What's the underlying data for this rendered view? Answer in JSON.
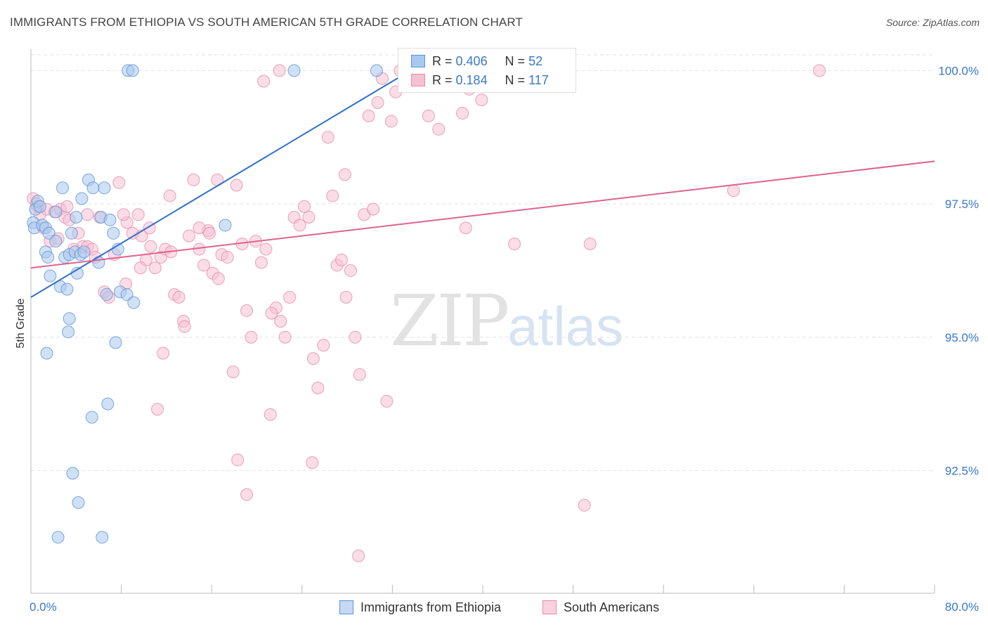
{
  "title": "IMMIGRANTS FROM ETHIOPIA VS SOUTH AMERICAN 5TH GRADE CORRELATION CHART",
  "source": "Source: ZipAtlas.com",
  "watermark": {
    "zip": "ZIP",
    "atlas": "atlas"
  },
  "legend": {
    "rows": [
      {
        "r_label": "R =",
        "r_value": "0.406",
        "n_label": "N =",
        "n_value": "52"
      },
      {
        "r_label": "R =",
        "r_value": "0.184",
        "n_label": "N =",
        "n_value": "117"
      }
    ]
  },
  "bottom_legend": [
    "Immigrants from Ethiopia",
    "South Americans"
  ],
  "chart_data": {
    "type": "scatter",
    "title": "IMMIGRANTS FROM ETHIOPIA VS SOUTH AMERICAN 5TH GRADE CORRELATION CHART",
    "xlabel": "",
    "ylabel": "5th Grade",
    "xlim": [
      0,
      80
    ],
    "ylim": [
      90.2,
      100.4
    ],
    "x_tick_labels": [
      "0.0%",
      "80.0%"
    ],
    "y_ticks": [
      92.5,
      95.0,
      97.5,
      100.0
    ],
    "y_tick_labels": [
      "92.5%",
      "95.0%",
      "97.5%",
      "100.0%"
    ],
    "grid": true,
    "legend_position": "top-center",
    "colors": {
      "ethiopia_fill": "#a9c8ef",
      "ethiopia_stroke": "#5b93d6",
      "ethiopia_line": "#2f6fcc",
      "south_fill": "#f6c1d3",
      "south_stroke": "#e88aaa",
      "south_line": "#e0628f",
      "tick_label": "#3a78c9"
    },
    "series": [
      {
        "name": "Immigrants from Ethiopia",
        "trend": {
          "x": [
            0,
            33.6
          ],
          "y": [
            95.75,
            100.0
          ]
        },
        "points": [
          [
            0.2,
            97.15
          ],
          [
            0.3,
            97.05
          ],
          [
            0.4,
            97.4
          ],
          [
            0.6,
            97.55
          ],
          [
            0.8,
            97.45
          ],
          [
            1.0,
            97.1
          ],
          [
            1.3,
            97.05
          ],
          [
            1.6,
            96.95
          ],
          [
            1.3,
            96.6
          ],
          [
            1.5,
            96.5
          ],
          [
            1.7,
            96.15
          ],
          [
            2.2,
            97.35
          ],
          [
            2.2,
            96.8
          ],
          [
            2.6,
            95.95
          ],
          [
            2.8,
            97.8
          ],
          [
            3.0,
            96.5
          ],
          [
            3.2,
            95.9
          ],
          [
            3.3,
            95.1
          ],
          [
            3.4,
            95.35
          ],
          [
            3.6,
            96.95
          ],
          [
            3.4,
            96.55
          ],
          [
            3.9,
            96.6
          ],
          [
            4.1,
            96.2
          ],
          [
            4.4,
            96.55
          ],
          [
            4.5,
            97.6
          ],
          [
            4.7,
            96.6
          ],
          [
            5.1,
            97.95
          ],
          [
            5.5,
            97.8
          ],
          [
            4.0,
            97.25
          ],
          [
            6.0,
            96.4
          ],
          [
            6.2,
            97.25
          ],
          [
            6.5,
            97.8
          ],
          [
            6.7,
            95.8
          ],
          [
            7.0,
            97.2
          ],
          [
            7.3,
            96.95
          ],
          [
            7.5,
            94.9
          ],
          [
            7.7,
            96.65
          ],
          [
            7.9,
            95.85
          ],
          [
            8.5,
            95.8
          ],
          [
            9.1,
            95.65
          ],
          [
            8.6,
            100.0
          ],
          [
            9.0,
            100.0
          ],
          [
            23.3,
            100.0
          ],
          [
            30.6,
            100.0
          ],
          [
            17.2,
            97.1
          ],
          [
            1.4,
            94.7
          ],
          [
            5.4,
            93.5
          ],
          [
            6.8,
            93.75
          ],
          [
            3.7,
            92.45
          ],
          [
            4.2,
            91.9
          ],
          [
            2.4,
            91.25
          ],
          [
            6.3,
            91.25
          ]
        ]
      },
      {
        "name": "South Americans",
        "trend": {
          "x": [
            0,
            80
          ],
          "y": [
            96.3,
            98.3
          ]
        },
        "points": [
          [
            0.2,
            97.6
          ],
          [
            0.5,
            97.5
          ],
          [
            0.8,
            97.3
          ],
          [
            1.1,
            97.05
          ],
          [
            1.4,
            97.4
          ],
          [
            1.7,
            96.8
          ],
          [
            2.1,
            97.35
          ],
          [
            2.6,
            97.4
          ],
          [
            3.0,
            97.25
          ],
          [
            3.4,
            97.2
          ],
          [
            3.8,
            96.65
          ],
          [
            4.2,
            96.95
          ],
          [
            4.6,
            96.7
          ],
          [
            5.0,
            96.7
          ],
          [
            5.4,
            96.65
          ],
          [
            5.7,
            96.5
          ],
          [
            6.1,
            97.25
          ],
          [
            6.5,
            95.85
          ],
          [
            6.9,
            95.75
          ],
          [
            7.4,
            96.55
          ],
          [
            7.8,
            97.9
          ],
          [
            8.4,
            96.0
          ],
          [
            8.5,
            97.15
          ],
          [
            9.0,
            96.95
          ],
          [
            9.5,
            97.3
          ],
          [
            9.8,
            96.9
          ],
          [
            10.2,
            96.45
          ],
          [
            10.6,
            96.7
          ],
          [
            11.0,
            96.3
          ],
          [
            11.5,
            96.5
          ],
          [
            11.9,
            96.65
          ],
          [
            12.3,
            97.65
          ],
          [
            12.7,
            95.8
          ],
          [
            13.1,
            95.75
          ],
          [
            13.5,
            95.3
          ],
          [
            14.0,
            96.9
          ],
          [
            14.4,
            97.95
          ],
          [
            14.9,
            96.65
          ],
          [
            15.3,
            96.35
          ],
          [
            15.7,
            97.0
          ],
          [
            16.1,
            96.2
          ],
          [
            16.5,
            97.95
          ],
          [
            16.9,
            96.55
          ],
          [
            17.4,
            96.5
          ],
          [
            17.9,
            94.35
          ],
          [
            18.2,
            97.85
          ],
          [
            18.7,
            96.75
          ],
          [
            19.1,
            95.5
          ],
          [
            19.5,
            95.0
          ],
          [
            19.9,
            96.8
          ],
          [
            20.4,
            96.4
          ],
          [
            20.8,
            96.65
          ],
          [
            21.2,
            93.55
          ],
          [
            21.7,
            95.55
          ],
          [
            22.1,
            95.3
          ],
          [
            22.5,
            95.0
          ],
          [
            22.9,
            95.75
          ],
          [
            23.3,
            97.25
          ],
          [
            23.8,
            97.1
          ],
          [
            24.2,
            97.45
          ],
          [
            24.6,
            97.25
          ],
          [
            25.0,
            94.6
          ],
          [
            25.4,
            94.05
          ],
          [
            25.9,
            94.85
          ],
          [
            26.3,
            98.75
          ],
          [
            26.7,
            97.65
          ],
          [
            27.1,
            96.35
          ],
          [
            27.5,
            96.45
          ],
          [
            27.9,
            95.75
          ],
          [
            28.3,
            96.25
          ],
          [
            28.7,
            95.0
          ],
          [
            29.1,
            94.3
          ],
          [
            29.5,
            97.3
          ],
          [
            29.9,
            99.15
          ],
          [
            30.3,
            97.4
          ],
          [
            30.7,
            99.4
          ],
          [
            31.1,
            99.85
          ],
          [
            31.5,
            93.8
          ],
          [
            31.9,
            99.05
          ],
          [
            32.3,
            99.6
          ],
          [
            32.7,
            100.0
          ],
          [
            33.1,
            99.95
          ],
          [
            35.2,
            99.15
          ],
          [
            36.1,
            98.9
          ],
          [
            37.0,
            100.0
          ],
          [
            38.2,
            99.2
          ],
          [
            38.8,
            99.65
          ],
          [
            39.9,
            99.45
          ],
          [
            29.0,
            90.9
          ],
          [
            38.5,
            97.05
          ],
          [
            42.8,
            96.75
          ],
          [
            49.5,
            96.75
          ],
          [
            62.2,
            97.75
          ],
          [
            69.8,
            100.0
          ],
          [
            34.4,
            100.0
          ],
          [
            20.6,
            99.8
          ],
          [
            22.0,
            100.0
          ],
          [
            27.8,
            98.05
          ],
          [
            24.9,
            92.65
          ],
          [
            18.3,
            92.7
          ],
          [
            19.1,
            92.05
          ],
          [
            49.0,
            91.85
          ],
          [
            11.2,
            93.65
          ],
          [
            11.7,
            94.7
          ],
          [
            13.6,
            95.2
          ],
          [
            12.4,
            96.6
          ],
          [
            8.2,
            97.3
          ],
          [
            14.9,
            97.05
          ],
          [
            16.6,
            96.1
          ],
          [
            10.5,
            97.05
          ],
          [
            5.0,
            97.3
          ],
          [
            2.4,
            96.85
          ],
          [
            21.3,
            95.45
          ],
          [
            3.2,
            97.45
          ],
          [
            0.6,
            97.45
          ],
          [
            9.7,
            96.3
          ],
          [
            15.8,
            96.95
          ]
        ]
      }
    ]
  }
}
